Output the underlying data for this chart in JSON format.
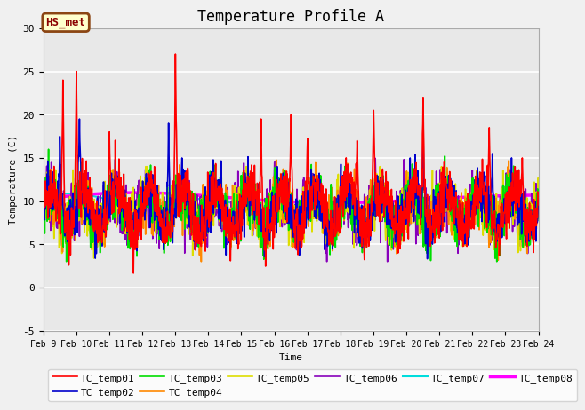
{
  "title": "Temperature Profile A",
  "xlabel": "Time",
  "ylabel": "Temperature (C)",
  "ylim": [
    -5,
    30
  ],
  "x_tick_labels": [
    "Feb 9",
    "Feb 10",
    "Feb 11",
    "Feb 12",
    "Feb 13",
    "Feb 14",
    "Feb 15",
    "Feb 16",
    "Feb 17",
    "Feb 18",
    "Feb 19",
    "Feb 20",
    "Feb 21",
    "Feb 22",
    "Feb 23",
    "Feb 24"
  ],
  "annotation": "HS_met",
  "legend_labels": [
    "TC_temp01",
    "TC_temp02",
    "TC_temp03",
    "TC_temp04",
    "TC_temp05",
    "TC_temp06",
    "TC_temp07",
    "TC_temp08"
  ],
  "line_colors": [
    "#ff0000",
    "#0000cc",
    "#00dd00",
    "#ff8800",
    "#dddd00",
    "#8800bb",
    "#00dddd",
    "#ff00ff"
  ],
  "line_widths": [
    1.2,
    1.2,
    1.2,
    1.2,
    1.2,
    1.2,
    1.5,
    2.5
  ],
  "fig_bg": "#f0f0f0",
  "axes_bg": "#e8e8e8",
  "grid_color": "#ffffff",
  "title_fontsize": 12,
  "seed": 42
}
